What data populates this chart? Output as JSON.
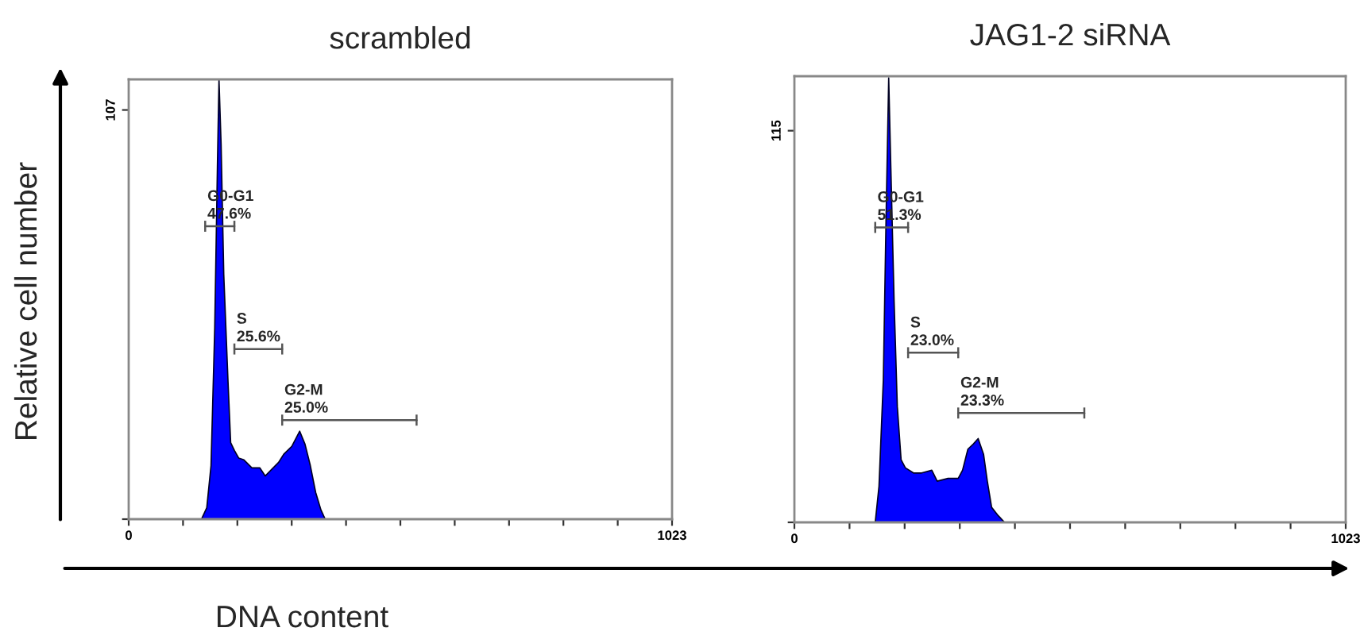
{
  "chart_data": [
    {
      "type": "area",
      "title": "scrambled",
      "ylabel": "Relative cell number",
      "xlabel": "DNA content",
      "xlim": [
        0,
        1023
      ],
      "ylim": [
        0,
        115
      ],
      "xticks": [
        0,
        {
          "value": 102.3,
          "label": null
        },
        {
          "value": 204.6,
          "label": null
        },
        {
          "value": 306.9,
          "label": null
        },
        {
          "value": 409.2,
          "label": null
        },
        {
          "value": 511.5,
          "label": null
        },
        {
          "value": 613.8,
          "label": null
        },
        {
          "value": 716.1,
          "label": null
        },
        {
          "value": 818.4,
          "label": null
        },
        {
          "value": 920.7,
          "label": null
        },
        1023
      ],
      "yticks": [
        {
          "value": 0,
          "label": null
        },
        107
      ],
      "series": [
        {
          "color": "#0000ff",
          "x": [
            137,
            147,
            155,
            162,
            167,
            170,
            174,
            179,
            187,
            192,
            199,
            207,
            217,
            232,
            247,
            257,
            272,
            282,
            292,
            307,
            322,
            332,
            342,
            352,
            362,
            370
          ],
          "values": [
            0,
            3,
            14,
            50,
            92,
            115,
            98,
            64,
            36,
            20,
            18,
            16,
            15.5,
            13.4,
            13.4,
            11.3,
            13.4,
            14.8,
            17,
            19,
            23,
            19.6,
            14,
            7,
            2.4,
            0
          ]
        },
        {
          "type": "line",
          "color": "#555555",
          "x": [
            144,
            199
          ],
          "values": [
            76.6,
            76.6
          ]
        },
        {
          "type": "line",
          "color": "#555555",
          "x": [
            199,
            289
          ],
          "values": [
            44.5,
            44.5
          ]
        },
        {
          "type": "line",
          "color": "#555555",
          "x": [
            289,
            542
          ],
          "values": [
            25.9,
            25.9
          ]
        }
      ],
      "annotations": [
        {
          "text": "G0-G1\n47.6%",
          "x": 144,
          "y": 76.6
        },
        {
          "text": "S\n25.6%",
          "x": 199,
          "y": 44.5
        },
        {
          "text": "G2-M\n25.0%",
          "x": 289,
          "y": 25.9
        }
      ]
    },
    {
      "type": "area",
      "title": "JAG1-2 siRNA",
      "xlim": [
        0,
        1023
      ],
      "ylim": [
        0,
        131
      ],
      "xticks": [
        0,
        {
          "value": 102.3,
          "label": null
        },
        {
          "value": 204.6,
          "label": null
        },
        {
          "value": 306.9,
          "label": null
        },
        {
          "value": 409.2,
          "label": null
        },
        {
          "value": 511.5,
          "label": null
        },
        {
          "value": 613.8,
          "label": null
        },
        {
          "value": 716.1,
          "label": null
        },
        {
          "value": 818.4,
          "label": null
        },
        {
          "value": 920.7,
          "label": null
        },
        1023
      ],
      "yticks": [
        {
          "value": 0,
          "label": null
        },
        115
      ],
      "series": [
        {
          "color": "#0000ff",
          "x": [
            150,
            157,
            165,
            170,
            175,
            179,
            185,
            191,
            198,
            206,
            221,
            236,
            255,
            265,
            285,
            304,
            312,
            322,
            332,
            341,
            351,
            358,
            366,
            378,
            390
          ],
          "values": [
            0,
            10.6,
            41.7,
            88.5,
            130.5,
            104,
            65,
            34,
            18.4,
            16,
            14.5,
            14.5,
            15.3,
            12.1,
            12.9,
            12.9,
            15.3,
            21.5,
            23,
            24.6,
            20,
            12.1,
            4.4,
            2,
            0
          ]
        },
        {
          "type": "line",
          "color": "#555555",
          "x": [
            150,
            211
          ],
          "values": [
            86.6,
            86.6
          ]
        },
        {
          "type": "line",
          "color": "#555555",
          "x": [
            211,
            304
          ],
          "values": [
            49.8,
            49.8
          ]
        },
        {
          "type": "line",
          "color": "#555555",
          "x": [
            304,
            538
          ],
          "values": [
            32.1,
            32.1
          ]
        }
      ],
      "annotations": [
        {
          "text": "G0-G1\n51.3%",
          "x": 150,
          "y": 86.6
        },
        {
          "text": "S\n23.0%",
          "x": 211,
          "y": 49.8
        },
        {
          "text": "G2-M\n23.3%",
          "x": 304,
          "y": 32.1
        }
      ]
    }
  ]
}
